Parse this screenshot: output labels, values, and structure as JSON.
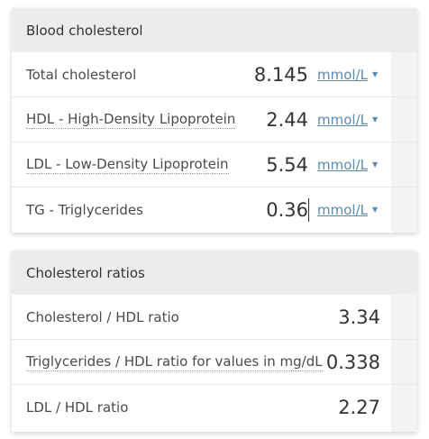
{
  "blood_cholesterol": {
    "title": "Blood cholesterol",
    "rows": [
      {
        "label": "Total cholesterol",
        "value": "8.145",
        "unit": "mmol/L",
        "arrow": "▼"
      },
      {
        "label": "HDL - High-Density Lipoprotein",
        "value": "2.44",
        "unit": "mmol/L",
        "arrow": "▼"
      },
      {
        "label": "LDL - Low-Density Lipoprotein",
        "value": "5.54",
        "unit": "mmol/L",
        "arrow": "▼"
      },
      {
        "label": "TG - Triglycerides",
        "value": "0.36",
        "unit": "mmol/L",
        "arrow": "▼"
      }
    ]
  },
  "cholesterol_ratios": {
    "title": "Cholesterol ratios",
    "rows": [
      {
        "label": "Cholesterol / HDL ratio",
        "value": "3.34"
      },
      {
        "label": "Triglycerides / HDL ratio for values in mg/dL",
        "value": "0.338"
      },
      {
        "label": "LDL / HDL ratio",
        "value": "2.27"
      }
    ]
  },
  "colors": {
    "header_bg": "#ececec",
    "unit_link": "#5b8ab5",
    "text": "#333333"
  }
}
